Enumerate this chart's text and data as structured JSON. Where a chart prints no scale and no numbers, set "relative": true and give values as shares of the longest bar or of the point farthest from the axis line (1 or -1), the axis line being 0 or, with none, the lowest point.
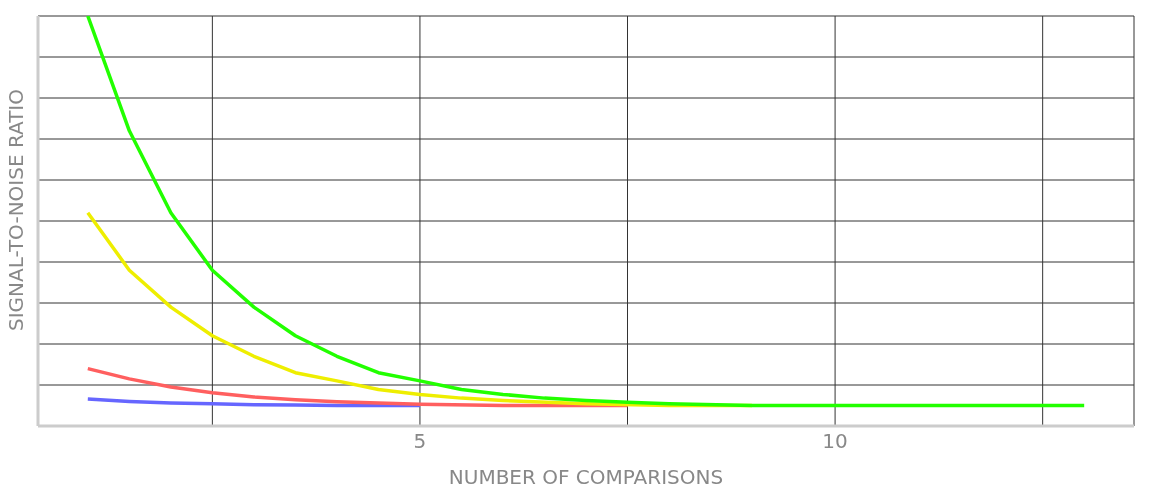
{
  "chart_data": {
    "type": "line",
    "relative": true,
    "xlabel": "NUMBER OF COMPARISONS",
    "ylabel": "SIGNAL-TO-NOISE RATIO",
    "xlim": [
      0.4,
      13.6
    ],
    "xticks": [
      {
        "value": 2.5,
        "label": null
      },
      5,
      {
        "value": 7.5,
        "label": null
      },
      10,
      {
        "value": 12.5,
        "label": null
      }
    ],
    "grid": true,
    "marker": "none",
    "line_style": "solid",
    "series": [
      {
        "color": "#6666ff",
        "x": [
          1,
          1.5,
          2,
          2.5,
          3,
          3.5,
          4,
          5
        ],
        "values": [
          0.066,
          0.06,
          0.056,
          0.054,
          0.052,
          0.051,
          0.05,
          0.05
        ]
      },
      {
        "color": "#ff5f5f",
        "x": [
          1,
          1.5,
          2,
          2.5,
          3,
          3.5,
          4,
          5,
          6,
          7,
          7.5
        ],
        "values": [
          0.14,
          0.115,
          0.095,
          0.081,
          0.071,
          0.064,
          0.059,
          0.053,
          0.05,
          0.05,
          0.05
        ]
      },
      {
        "color": "#eeee00",
        "x": [
          1,
          1.5,
          2,
          2.5,
          3,
          3.5,
          4,
          4.5,
          5,
          5.5,
          6,
          7,
          8,
          9
        ],
        "values": [
          0.52,
          0.38,
          0.29,
          0.22,
          0.17,
          0.13,
          0.11,
          0.089,
          0.077,
          0.068,
          0.062,
          0.054,
          0.05,
          0.05
        ]
      },
      {
        "color": "#22ff00",
        "x": [
          1,
          1.5,
          2,
          2.5,
          3,
          3.5,
          4,
          4.5,
          5,
          5.5,
          6,
          6.5,
          7,
          7.5,
          8,
          9,
          10,
          11,
          12,
          13
        ],
        "values": [
          1,
          0.72,
          0.52,
          0.38,
          0.29,
          0.22,
          0.17,
          0.13,
          0.11,
          0.089,
          0.077,
          0.068,
          0.062,
          0.058,
          0.054,
          0.05,
          0.05,
          0.05,
          0.05,
          0.05
        ]
      }
    ]
  }
}
